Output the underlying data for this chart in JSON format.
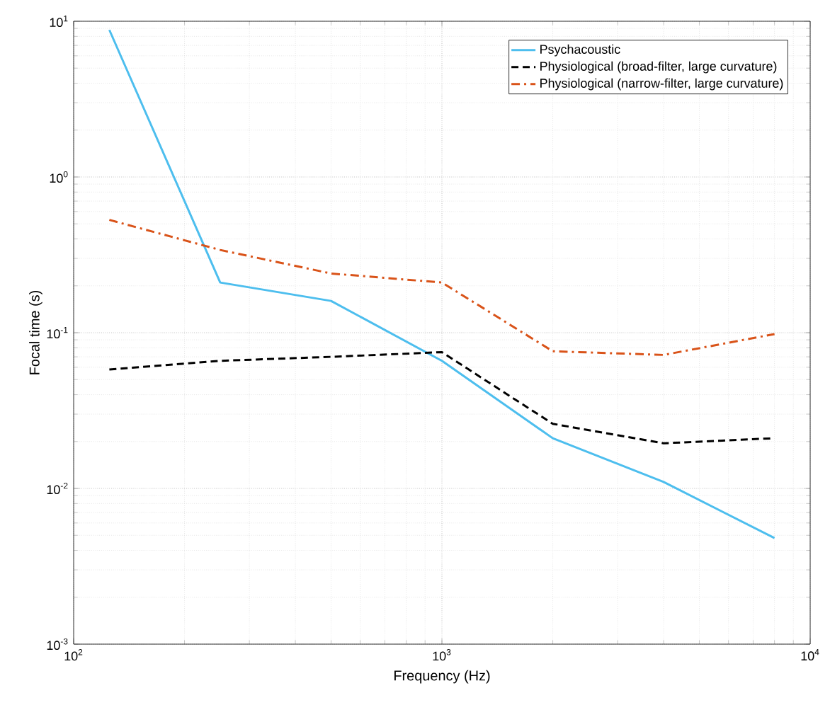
{
  "chart_data": {
    "type": "line",
    "xlabel": "Frequency (Hz)",
    "ylabel": "Focal time (s)",
    "log": "xy",
    "grid": true,
    "legend": "top right",
    "x": [
      125,
      250,
      500,
      1000,
      2000,
      4000,
      8000
    ],
    "xlim": [
      100,
      10000
    ],
    "ylim": [
      0.001,
      10
    ],
    "xticks": [
      {
        "value": 100,
        "label": "10$^{2}$"
      },
      {
        "value": 1000,
        "label": "10$^{3}$"
      },
      {
        "value": 10000,
        "label": "10$^{4}$"
      }
    ],
    "yticks": [
      {
        "value": 0.001,
        "label": "10$^{-3}$"
      },
      {
        "value": 0.01,
        "label": "10$^{-2}$"
      },
      {
        "value": 0.1,
        "label": "10$^{-1}$"
      },
      {
        "value": 1,
        "label": "10$^{0}$"
      },
      {
        "value": 10,
        "label": "10$^{1}$"
      }
    ],
    "series": [
      {
        "name": "Psychacoustic",
        "color": "#4dbeee",
        "line_style": "solid",
        "values": [
          8.8,
          0.21,
          0.16,
          0.066,
          0.021,
          0.011,
          0.0048
        ]
      },
      {
        "name": "Physiological (broad-filter, large curvature)",
        "color": "#000000",
        "line_style": "dashed",
        "values": [
          0.058,
          0.066,
          0.07,
          0.075,
          0.026,
          0.0195,
          0.021
        ]
      },
      {
        "name": "Physiological (narrow-filter, large curvature)",
        "color": "#d95319",
        "line_style": "dashdot",
        "values": [
          0.53,
          0.34,
          0.24,
          0.21,
          0.076,
          0.072,
          0.098
        ]
      }
    ]
  }
}
